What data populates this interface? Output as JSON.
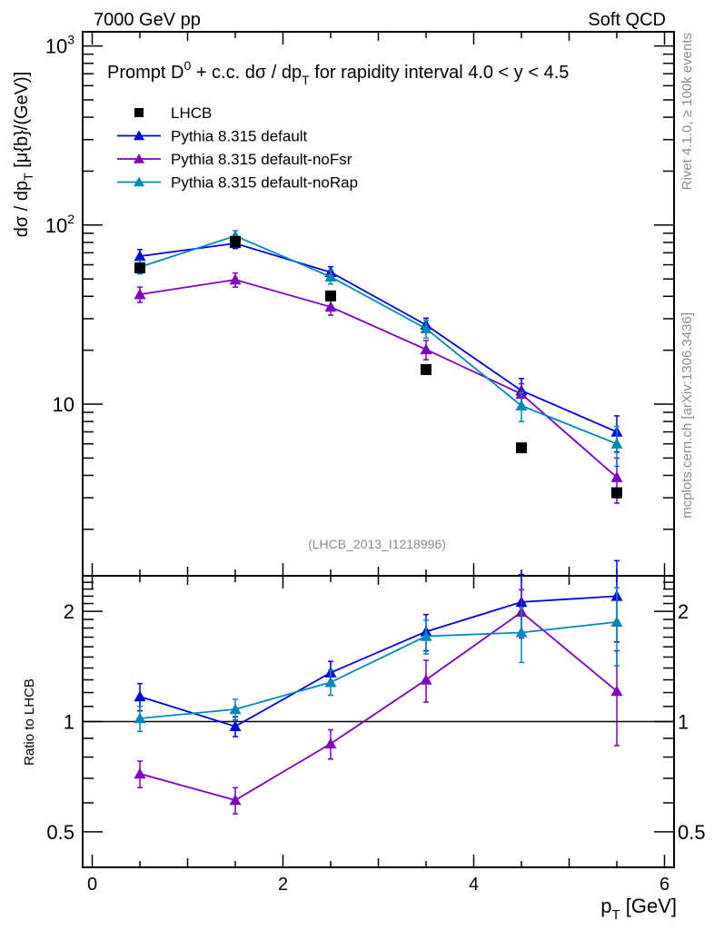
{
  "header": {
    "left": "7000 GeV pp",
    "right": "Soft QCD"
  },
  "side_labels": {
    "rivet": "Rivet 4.1.0, ≥ 100k events",
    "mcplots": "mcplots.cern.ch [arXiv:1306.3436]"
  },
  "analysis_id": "(LHCB_2013_I1218996)",
  "colors": {
    "LHCB": "#000000",
    "default": "#0000dd",
    "noFsr": "#7f00bf",
    "noRap": "#0088b8"
  },
  "chart_data": [
    {
      "type": "line",
      "panel": "main",
      "title": "Prompt D⁰ + c.c. dσ / dp_T for rapidity interval 4.0 < y < 4.5",
      "title_parts": {
        "pre": "Prompt D",
        "sup": "0",
        "mid": " + c.c.  dσ / dp",
        "sub": "T",
        "post": " for rapidity interval 4.0 < y < 4.5"
      },
      "xlabel": "p_T [GeV]",
      "ylabel": "dσ / dp_T [μ{b}/(GeV)]",
      "ylabel_parts": {
        "pre": "dσ / dp",
        "sub": "T",
        "post": " [μ{b}/(GeV)]"
      },
      "yscale": "log",
      "xlim": [
        -0.1,
        6.1
      ],
      "ylim": [
        1.1,
        1200
      ],
      "yticks": [
        {
          "value": 1000,
          "base": "10",
          "exp": "3"
        },
        {
          "value": 100,
          "base": "10",
          "exp": "2"
        },
        {
          "value": 10,
          "base": "10",
          "exp": ""
        }
      ],
      "legend_position": "top-left",
      "x": [
        0.5,
        1.5,
        2.5,
        3.5,
        4.5,
        5.5
      ],
      "series": [
        {
          "name": "LHCB",
          "key": "LHCB",
          "marker": "square",
          "line": false,
          "values": [
            57.7,
            81,
            40.2,
            15.6,
            5.7,
            3.2
          ],
          "errors": [
            3,
            4,
            2,
            0.8,
            0.3,
            0.2
          ]
        },
        {
          "name": "Pythia 8.315 default",
          "key": "default",
          "marker": "triangle",
          "line": true,
          "values": [
            67,
            79,
            54.5,
            27.7,
            11.9,
            7.0
          ],
          "errors": [
            6,
            5,
            4,
            2.5,
            2.0,
            1.6
          ]
        },
        {
          "name": "Pythia 8.315 default-noFsr",
          "key": "noFsr",
          "marker": "triangle",
          "line": true,
          "values": [
            41,
            49.5,
            34.9,
            20.2,
            11.4,
            3.9
          ],
          "errors": [
            4,
            4.5,
            3.5,
            2.5,
            1.6,
            1.1
          ]
        },
        {
          "name": "Pythia 8.315 default-noRap",
          "key": "noRap",
          "marker": "triangle",
          "line": true,
          "values": [
            58.3,
            87,
            51.4,
            26.4,
            9.8,
            6.0
          ],
          "errors": [
            5,
            6,
            4.5,
            3,
            1.8,
            1.5
          ]
        }
      ]
    },
    {
      "type": "line",
      "panel": "ratio",
      "ylabel": "Ratio to LHCB",
      "xlabel": "p_T [GeV]",
      "xlabel_parts": {
        "pre": "p",
        "sub": "T",
        "post": " [GeV]"
      },
      "yscale": "log",
      "xlim": [
        -0.1,
        6.1
      ],
      "ylim": [
        0.4,
        2.5
      ],
      "yticks": [
        0.5,
        1,
        2
      ],
      "xticks": [
        0,
        2,
        4,
        6
      ],
      "reference_line": 1,
      "x": [
        0.5,
        1.5,
        2.5,
        3.5,
        4.5,
        5.5
      ],
      "series": [
        {
          "name": "Pythia 8.315 default",
          "key": "default",
          "values": [
            1.17,
            0.97,
            1.36,
            1.76,
            2.12,
            2.2
          ],
          "errors": [
            0.1,
            0.06,
            0.1,
            0.2,
            0.4,
            0.55
          ]
        },
        {
          "name": "Pythia 8.315 default-noFsr",
          "key": "noFsr",
          "values": [
            0.72,
            0.61,
            0.87,
            1.3,
            1.99,
            1.21
          ],
          "errors": [
            0.06,
            0.05,
            0.08,
            0.17,
            0.3,
            0.35
          ]
        },
        {
          "name": "Pythia 8.315 default-noRap",
          "key": "noRap",
          "values": [
            1.02,
            1.08,
            1.28,
            1.71,
            1.75,
            1.87
          ],
          "errors": [
            0.08,
            0.07,
            0.1,
            0.18,
            0.3,
            0.45
          ]
        }
      ]
    }
  ]
}
